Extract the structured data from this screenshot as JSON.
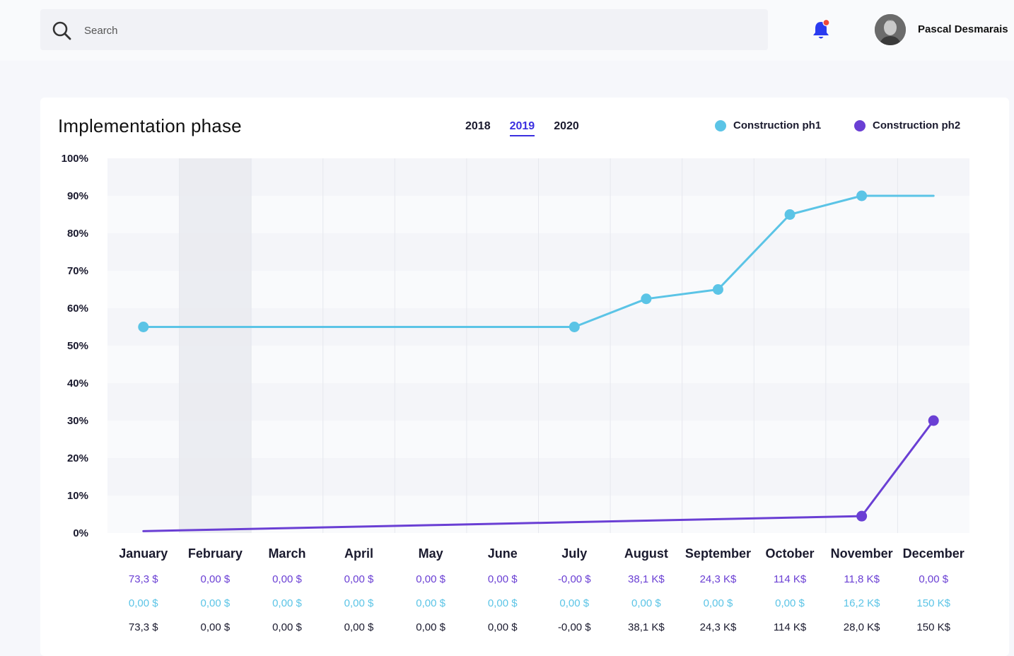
{
  "search": {
    "placeholder": "Search"
  },
  "user": {
    "name": "Pascal Desmarais"
  },
  "card": {
    "title": "Implementation phase",
    "years": [
      {
        "label": "2018",
        "active": false
      },
      {
        "label": "2019",
        "active": true
      },
      {
        "label": "2020",
        "active": false
      }
    ]
  },
  "colors": {
    "ph1": "#5bc4e6",
    "ph2": "#6a3fd4",
    "accent": "#3b2fe0",
    "bell": "#2a3bf0",
    "bell_badge": "#f04a3a"
  },
  "chart_data": {
    "type": "line",
    "categories": [
      "January",
      "February",
      "March",
      "April",
      "May",
      "June",
      "July",
      "August",
      "September",
      "October",
      "November",
      "December"
    ],
    "highlighted_category": "February",
    "y_ticks": [
      "0%",
      "10%",
      "20%",
      "30%",
      "40%",
      "50%",
      "60%",
      "70%",
      "80%",
      "90%",
      "100%"
    ],
    "ylim": [
      0,
      100
    ],
    "legend_placement": "top-right",
    "series": [
      {
        "name": "Construction ph1",
        "color": "#5bc4e6",
        "values": [
          55,
          55,
          55,
          55,
          55,
          55,
          55,
          62.5,
          65,
          85,
          90,
          90
        ],
        "markers": [
          0,
          6,
          7,
          8,
          9,
          10
        ]
      },
      {
        "name": "Construction ph2",
        "color": "#6a3fd4",
        "values": [
          0.5,
          0.9,
          1.3,
          1.7,
          2.1,
          2.5,
          2.9,
          3.3,
          3.7,
          4.1,
          4.5,
          30
        ],
        "markers": [
          10,
          11
        ]
      }
    ],
    "value_rows": [
      {
        "color": "#6a3fd4",
        "values": [
          "73,3 $",
          "0,00 $",
          "0,00 $",
          "0,00 $",
          "0,00 $",
          "0,00 $",
          "-0,00 $",
          "38,1 K$",
          "24,3 K$",
          "114 K$",
          "11,8 K$",
          "0,00 $"
        ]
      },
      {
        "color": "#5bc4e6",
        "values": [
          "0,00 $",
          "0,00 $",
          "0,00 $",
          "0,00 $",
          "0,00 $",
          "0,00 $",
          "0,00 $",
          "0,00 $",
          "0,00 $",
          "0,00 $",
          "16,2 K$",
          "150 K$"
        ]
      },
      {
        "color": "#1a1a2e",
        "values": [
          "73,3 $",
          "0,00 $",
          "0,00 $",
          "0,00 $",
          "0,00 $",
          "0,00 $",
          "-0,00 $",
          "38,1 K$",
          "24,3 K$",
          "114 K$",
          "28,0 K$",
          "150 K$"
        ]
      }
    ]
  }
}
